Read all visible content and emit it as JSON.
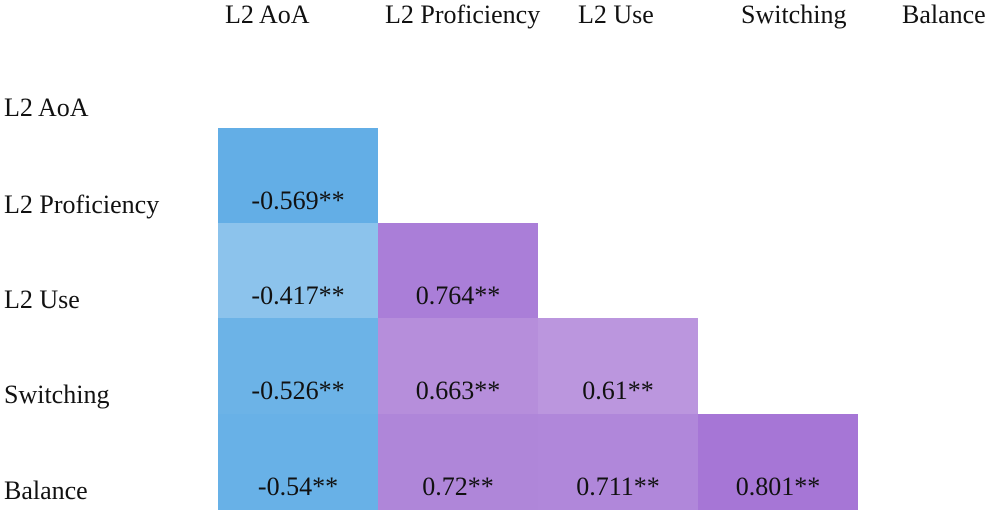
{
  "chart_data": {
    "type": "heatmap",
    "title": "",
    "columns": [
      "L2 AoA",
      "L2 Proficiency",
      "L2 Use",
      "Switching",
      "Balance"
    ],
    "rows": [
      "L2 AoA",
      "L2 Proficiency",
      "L2 Use",
      "Switching",
      "Balance"
    ],
    "cells": [
      {
        "row": "L2 Proficiency",
        "col": "L2 AoA",
        "value": -0.569,
        "label": "-0.569**",
        "color": "#63aee6"
      },
      {
        "row": "L2 Use",
        "col": "L2 AoA",
        "value": -0.417,
        "label": "-0.417**",
        "color": "#8cc3ec"
      },
      {
        "row": "L2 Use",
        "col": "L2 Proficiency",
        "value": 0.764,
        "label": "0.764**",
        "color": "#aa7ed8"
      },
      {
        "row": "Switching",
        "col": "L2 AoA",
        "value": -0.526,
        "label": "-0.526**",
        "color": "#6cb3e7"
      },
      {
        "row": "Switching",
        "col": "L2 Proficiency",
        "value": 0.663,
        "label": "0.663**",
        "color": "#b68edb"
      },
      {
        "row": "Switching",
        "col": "L2 Use",
        "value": 0.61,
        "label": "0.61**",
        "color": "#bb96de"
      },
      {
        "row": "Balance",
        "col": "L2 AoA",
        "value": -0.54,
        "label": "-0.54**",
        "color": "#68b1e7"
      },
      {
        "row": "Balance",
        "col": "L2 Proficiency",
        "value": 0.72,
        "label": "0.72**",
        "color": "#af86d9"
      },
      {
        "row": "Balance",
        "col": "L2 Use",
        "value": 0.711,
        "label": "0.711**",
        "color": "#b087da"
      },
      {
        "row": "Balance",
        "col": "Switching",
        "value": 0.801,
        "label": "0.801**",
        "color": "#a676d6"
      }
    ],
    "colors": {
      "negative": "#63aee6",
      "positive": "#a676d6",
      "text": "#111111",
      "background": "#ffffff"
    },
    "lower_triangle_only": true,
    "grid": false,
    "legend": "none"
  }
}
